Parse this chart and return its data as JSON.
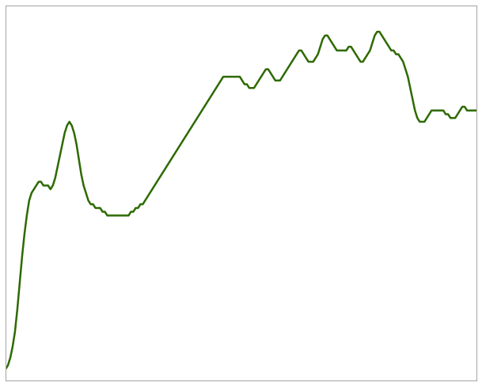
{
  "title": "",
  "line_color": "#2d6a00",
  "background_color": "#ffffff",
  "grid_color": "#cccccc",
  "line_width": 1.8,
  "figsize": [
    6.09,
    4.88
  ],
  "dpi": 100,
  "xlim": [
    0,
    199
  ],
  "ylim": [
    55,
    155
  ],
  "y_values": [
    58,
    59,
    61,
    64,
    68,
    74,
    81,
    88,
    94,
    99,
    103,
    105,
    106,
    107,
    108,
    108,
    107,
    107,
    107,
    106,
    107,
    109,
    112,
    115,
    118,
    121,
    123,
    124,
    123,
    121,
    118,
    114,
    110,
    107,
    105,
    103,
    102,
    102,
    101,
    101,
    101,
    100,
    100,
    99,
    99,
    99,
    99,
    99,
    99,
    99,
    99,
    99,
    99,
    100,
    100,
    101,
    101,
    102,
    102,
    103,
    104,
    105,
    106,
    107,
    108,
    109,
    110,
    111,
    112,
    113,
    114,
    115,
    116,
    117,
    118,
    119,
    120,
    121,
    122,
    123,
    124,
    125,
    126,
    127,
    128,
    129,
    130,
    131,
    132,
    133,
    134,
    135,
    136,
    136,
    136,
    136,
    136,
    136,
    136,
    136,
    135,
    134,
    134,
    133,
    133,
    133,
    134,
    135,
    136,
    137,
    138,
    138,
    137,
    136,
    135,
    135,
    135,
    136,
    137,
    138,
    139,
    140,
    141,
    142,
    143,
    143,
    142,
    141,
    140,
    140,
    140,
    141,
    142,
    144,
    146,
    147,
    147,
    146,
    145,
    144,
    143,
    143,
    143,
    143,
    143,
    144,
    144,
    143,
    142,
    141,
    140,
    140,
    141,
    142,
    143,
    145,
    147,
    148,
    148,
    147,
    146,
    145,
    144,
    143,
    143,
    142,
    142,
    141,
    140,
    138,
    136,
    133,
    130,
    127,
    125,
    124,
    124,
    124,
    125,
    126,
    127,
    127,
    127,
    127,
    127,
    127,
    126,
    126,
    125,
    125,
    125,
    126,
    127,
    128,
    128,
    127,
    127,
    127,
    127,
    127
  ],
  "grid_nx": 10,
  "grid_ny": 6,
  "border_color": "#aaaaaa",
  "border_linewidth": 0.8
}
